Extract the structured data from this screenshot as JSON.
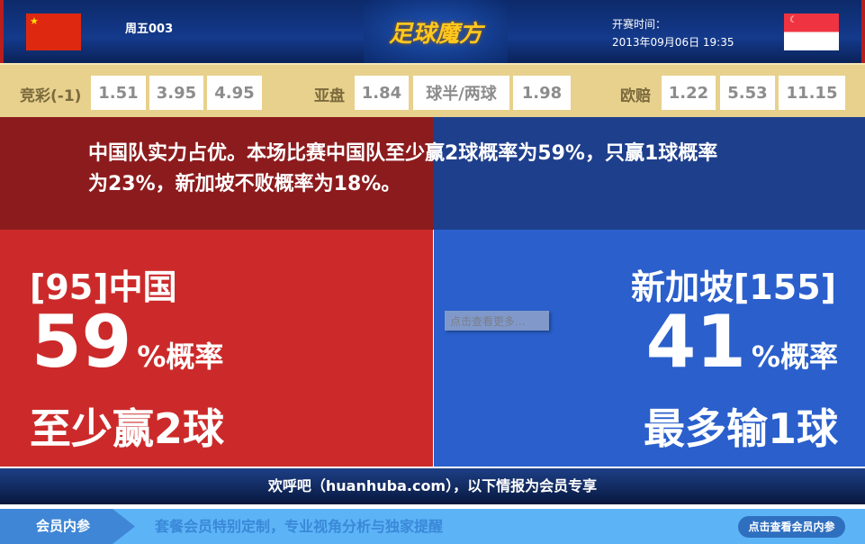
{
  "header": {
    "match_no": "周五003",
    "logo": "足球魔方",
    "kickoff_label": "开赛时间：",
    "kickoff_time": "2013年09月06日 19:35",
    "home_flag": "china-flag-icon",
    "away_flag": "singapore-flag-icon"
  },
  "odds": {
    "jingcai_label": "竞彩(-1)",
    "jingcai": [
      "1.51",
      "3.95",
      "4.95"
    ],
    "asian_label": "亚盘",
    "asian": [
      "1.84",
      "球半/两球",
      "1.98"
    ],
    "euro_label": "欧赔",
    "euro": [
      "1.22",
      "5.53",
      "11.15"
    ]
  },
  "summary": "中国队实力占优。本场比赛中国队至少赢2球概率为59%，只赢1球概率为23%，新加坡不败概率为18%。",
  "home": {
    "team": "[95]中国",
    "pct": "59",
    "unit": "%概率",
    "result": "至少赢2球"
  },
  "away": {
    "team": "新加坡[155]",
    "pct": "41",
    "unit": "%概率",
    "result": "最多输1球"
  },
  "tooltip": "点击查看更多...",
  "welcome": "欢呼吧（huanhuba.com），以下情报为会员专享",
  "bottom": {
    "label": "会员内参",
    "slogan": "套餐会员特别定制，专业视角分析与独家提醒",
    "button": "点击查看会员内参"
  },
  "colors": {
    "home": "#cc2a2a",
    "away": "#2a5fcc",
    "odds_bg": "#e8d18d"
  }
}
